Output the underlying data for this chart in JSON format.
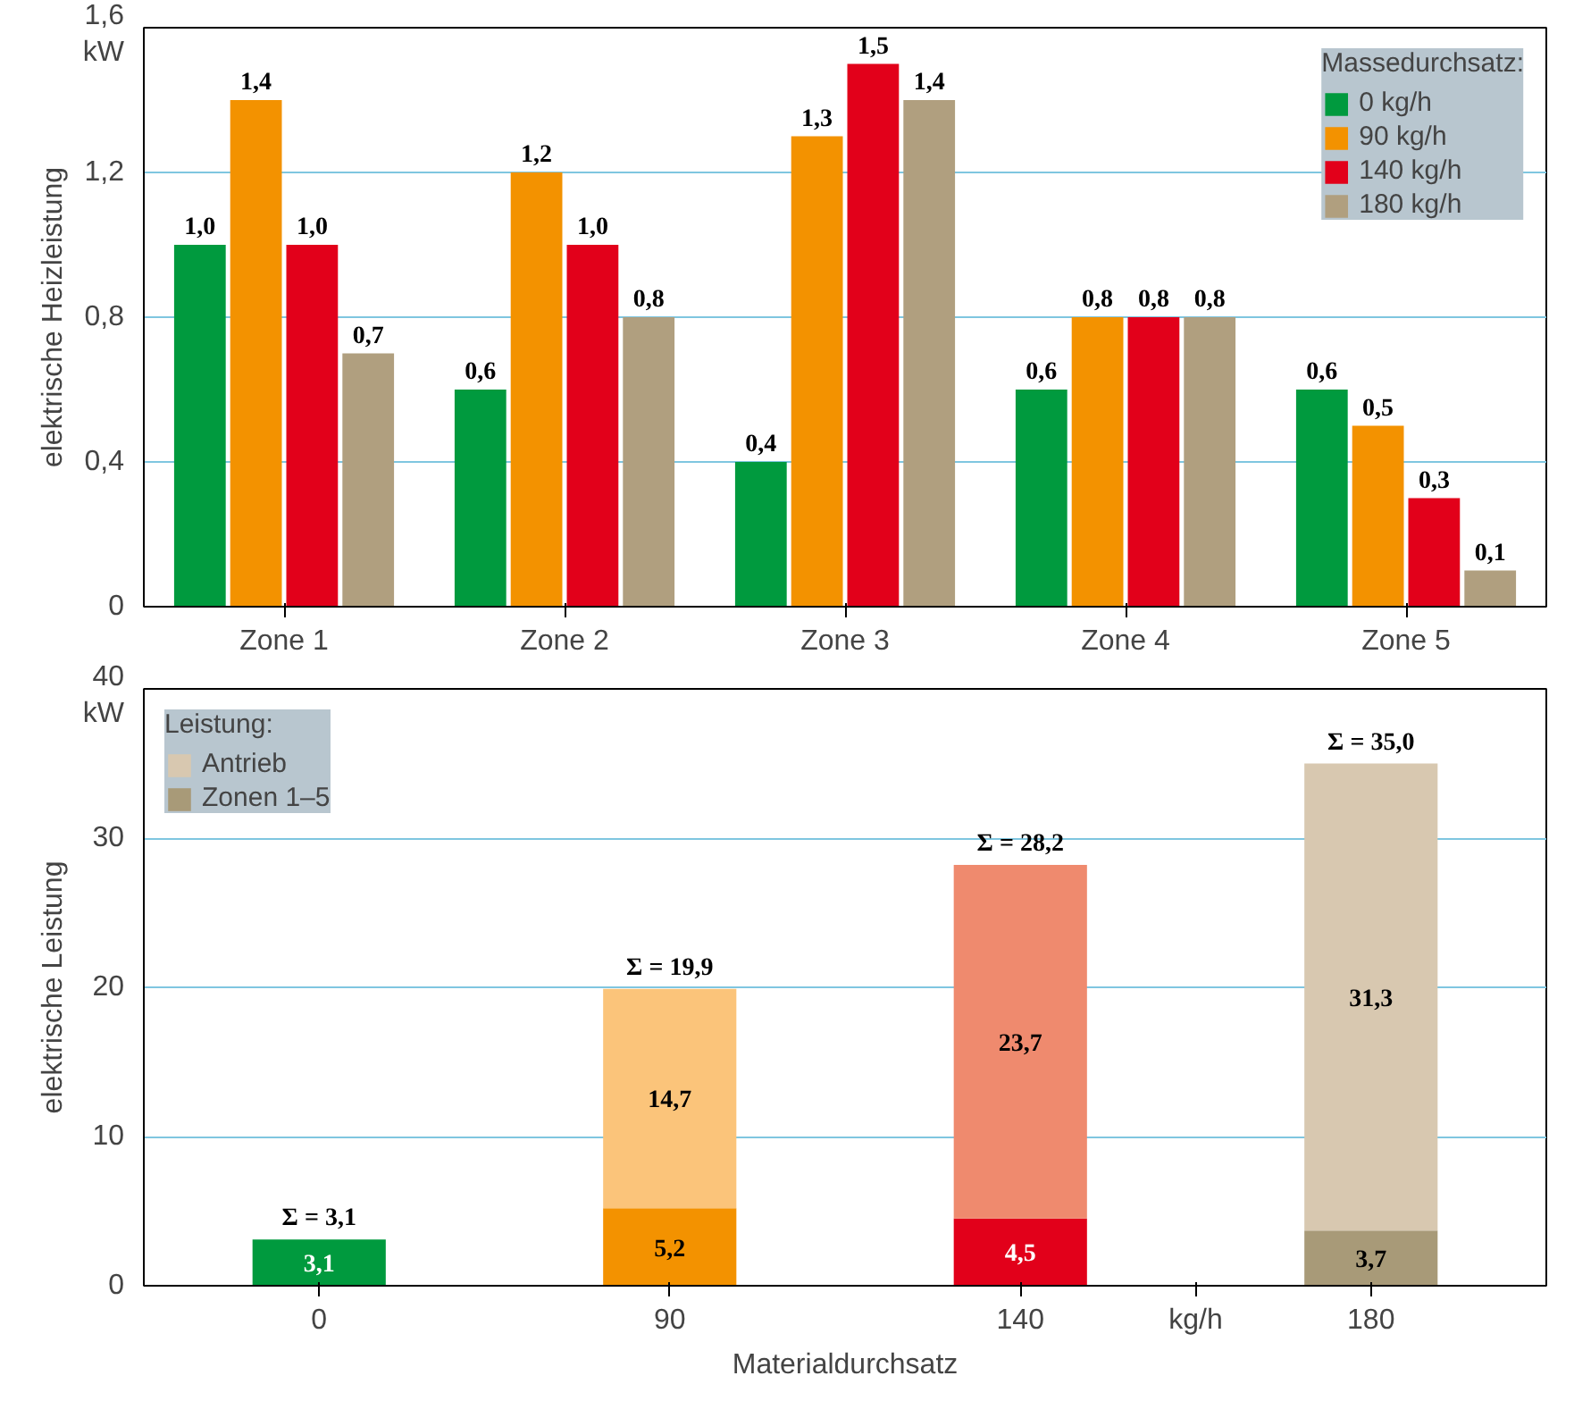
{
  "chart_data": [
    {
      "type": "bar",
      "ylabel": "elektrische Heizleistung",
      "annotations": [
        "kW"
      ],
      "categories": [
        "Zone 1",
        "Zone 2",
        "Zone 3",
        "Zone 4",
        "Zone 5"
      ],
      "series": [
        {
          "name": "0 kg/h",
          "color": "#009a3e",
          "values": [
            1.0,
            0.6,
            0.4,
            0.6,
            0.6
          ],
          "value_labels": [
            "1,0",
            "0,6",
            "0,4",
            "0,6",
            "0,6"
          ]
        },
        {
          "name": "90 kg/h",
          "color": "#f39200",
          "values": [
            1.4,
            1.2,
            1.3,
            0.8,
            0.5
          ],
          "value_labels": [
            "1,4",
            "1,2",
            "1,3",
            "0,8",
            "0,5"
          ]
        },
        {
          "name": "140 kg/h",
          "color": "#e2001a",
          "values": [
            1.0,
            1.0,
            1.5,
            0.8,
            0.3
          ],
          "value_labels": [
            "1,0",
            "1,0",
            "1,5",
            "0,8",
            "0,3"
          ]
        },
        {
          "name": "180 kg/h",
          "color": "#b09f7f",
          "values": [
            0.7,
            0.8,
            1.4,
            0.8,
            0.1
          ],
          "value_labels": [
            "0,7",
            "0,8",
            "1,4",
            "0,8",
            "0,1"
          ]
        }
      ],
      "legend_title": "Massedurchsatz:",
      "legend": "top right",
      "ylim": [
        0,
        1.6
      ],
      "yticks": [
        0,
        {
          "value": 0.4,
          "label": "0,4"
        },
        {
          "value": 0.8,
          "label": "0,8"
        },
        {
          "value": 1.2,
          "label": "1,2"
        },
        {
          "value": 1.6,
          "label": "1,6"
        }
      ],
      "grid": "y"
    },
    {
      "type": "bar",
      "stacked": true,
      "xlabel": "Materialdurchsatz",
      "ylabel": "elektrische Leistung",
      "annotations": [
        "kW",
        "kg/h"
      ],
      "categories": [
        "0",
        "90",
        "140",
        "180"
      ],
      "series": [
        {
          "name": "Zonen 1–5",
          "colors": [
            "#009a3e",
            "#f39200",
            "#e2001a",
            "#a89a78"
          ],
          "values": [
            3.1,
            5.2,
            4.5,
            3.7
          ],
          "value_labels": [
            "3,1",
            "5,2",
            "4,5",
            "3,7"
          ]
        },
        {
          "name": "Antrieb",
          "colors": [
            "#9fd39f",
            "#fbc47a",
            "#ef8a6e",
            "#d8c8b0"
          ],
          "values": [
            null,
            14.7,
            23.7,
            31.3
          ],
          "value_labels": [
            null,
            "14,7",
            "23,7",
            "31,3"
          ]
        }
      ],
      "totals": [
        "Σ = 3,1",
        "Σ = 19,9",
        "Σ = 28,2",
        "Σ = 35,0"
      ],
      "legend_title": "Leistung:",
      "legend": "top left",
      "ylim": [
        0,
        40
      ],
      "yticks": [
        0,
        10,
        20,
        30,
        40
      ],
      "grid": "y"
    }
  ]
}
